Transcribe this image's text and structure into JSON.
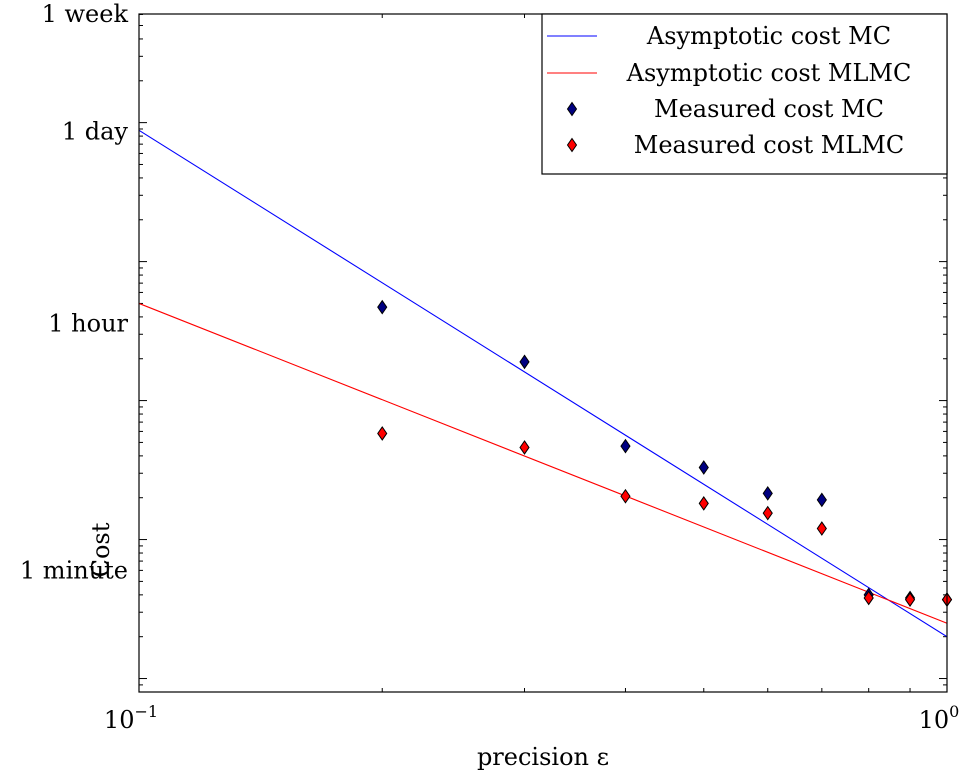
{
  "chart_data": {
    "type": "scatter",
    "title": "",
    "xlabel": "precision ε",
    "ylabel": "Cost",
    "xscale": "log",
    "yscale": "log",
    "xlim": [
      0.1,
      1
    ],
    "ylim": [
      8,
      604800
    ],
    "x_ticks": [
      {
        "base": "10",
        "exponent": "−1",
        "value": 0.1
      },
      {
        "base": "10",
        "exponent": "0",
        "value": 1
      }
    ],
    "y_ticks": [
      {
        "label": "1 week",
        "value": 604800
      },
      {
        "label": "1 day",
        "value": 86400
      },
      {
        "label": "1 hour",
        "value": 3600
      },
      {
        "label": "1 minute",
        "value": 60
      }
    ],
    "legend": {
      "position": "top-right",
      "entries": [
        "Asymptotic cost MC",
        "Asymptotic cost MLMC",
        "Measured cost MC",
        "Measured cost MLMC"
      ]
    },
    "series": [
      {
        "name": "Asymptotic cost MC",
        "kind": "line",
        "color": "#0000ff",
        "points": [
          [
            0.1,
            88000
          ],
          [
            1,
            20
          ]
        ]
      },
      {
        "name": "Asymptotic cost MLMC",
        "kind": "line",
        "color": "#ff0000",
        "points": [
          [
            0.1,
            5000
          ],
          [
            1,
            25
          ]
        ]
      },
      {
        "name": "Measured cost MC",
        "kind": "scatter",
        "marker": "diamond",
        "color": "#000080",
        "points": [
          [
            0.2,
            4700
          ],
          [
            0.3,
            1900
          ],
          [
            0.4,
            470
          ],
          [
            0.5,
            330
          ],
          [
            0.6,
            215
          ],
          [
            0.7,
            193
          ],
          [
            0.8,
            40
          ],
          [
            0.9,
            38
          ],
          [
            1.0,
            37
          ]
        ]
      },
      {
        "name": "Measured cost MLMC",
        "kind": "scatter",
        "marker": "diamond",
        "color": "#ff0000",
        "points": [
          [
            0.2,
            580
          ],
          [
            0.3,
            460
          ],
          [
            0.4,
            205
          ],
          [
            0.5,
            182
          ],
          [
            0.6,
            155
          ],
          [
            0.7,
            120
          ],
          [
            0.8,
            38
          ],
          [
            0.9,
            37
          ],
          [
            1.0,
            37
          ]
        ]
      }
    ]
  }
}
